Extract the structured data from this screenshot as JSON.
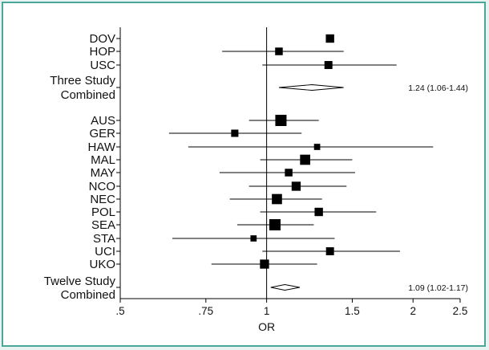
{
  "chart_data": {
    "type": "forest",
    "xlabel": "OR",
    "xscale": "log",
    "xlim": [
      0.5,
      2.5
    ],
    "xticks": [
      {
        "value": 0.5,
        "label": ".5"
      },
      {
        "value": 0.75,
        "label": ".75"
      },
      {
        "value": 1,
        "label": "1"
      },
      {
        "value": 1.5,
        "label": "1.5"
      },
      {
        "value": 2,
        "label": "2"
      },
      {
        "value": 2.5,
        "label": "2.5"
      }
    ],
    "reference_line": 1,
    "rows": [
      {
        "label": "DOV",
        "or": 1.35,
        "lo": 1.35,
        "hi": 1.35,
        "weight": 0.6,
        "kind": "study"
      },
      {
        "label": "HOP",
        "or": 1.06,
        "lo": 0.81,
        "hi": 1.44,
        "weight": 0.5,
        "kind": "study"
      },
      {
        "label": "USC",
        "or": 1.34,
        "lo": 0.98,
        "hi": 1.85,
        "weight": 0.55,
        "kind": "study"
      },
      {
        "label": "Three Study Combined",
        "or": 1.24,
        "lo": 1.06,
        "hi": 1.44,
        "kind": "combined",
        "estimate": "1.24 (1.06-1.44)"
      },
      {
        "label": "AUS",
        "or": 1.07,
        "lo": 0.92,
        "hi": 1.28,
        "weight": 1.0,
        "kind": "study"
      },
      {
        "label": "GER",
        "or": 0.86,
        "lo": 0.63,
        "hi": 1.18,
        "weight": 0.45,
        "kind": "study"
      },
      {
        "label": "HAW",
        "or": 1.27,
        "lo": 0.69,
        "hi": 2.2,
        "weight": 0.3,
        "kind": "study"
      },
      {
        "label": "MAL",
        "or": 1.2,
        "lo": 0.97,
        "hi": 1.5,
        "weight": 0.85,
        "kind": "study"
      },
      {
        "label": "MAY",
        "or": 1.11,
        "lo": 0.8,
        "hi": 1.52,
        "weight": 0.5,
        "kind": "study"
      },
      {
        "label": "NCO",
        "or": 1.15,
        "lo": 0.92,
        "hi": 1.46,
        "weight": 0.7,
        "kind": "study"
      },
      {
        "label": "NEC",
        "or": 1.05,
        "lo": 0.84,
        "hi": 1.3,
        "weight": 0.85,
        "kind": "study"
      },
      {
        "label": "POL",
        "or": 1.28,
        "lo": 0.97,
        "hi": 1.68,
        "weight": 0.6,
        "kind": "study"
      },
      {
        "label": "SEA",
        "or": 1.04,
        "lo": 0.87,
        "hi": 1.25,
        "weight": 1.0,
        "kind": "study"
      },
      {
        "label": "STA",
        "or": 0.94,
        "lo": 0.64,
        "hi": 1.38,
        "weight": 0.3,
        "kind": "study"
      },
      {
        "label": "UCI",
        "or": 1.35,
        "lo": 0.98,
        "hi": 1.88,
        "weight": 0.55,
        "kind": "study"
      },
      {
        "label": "UKO",
        "or": 0.99,
        "lo": 0.77,
        "hi": 1.27,
        "weight": 0.7,
        "kind": "study"
      },
      {
        "label": "Twelve Study Combined",
        "or": 1.09,
        "lo": 1.02,
        "hi": 1.17,
        "kind": "combined",
        "estimate": "1.09 (1.02-1.17)"
      }
    ]
  }
}
